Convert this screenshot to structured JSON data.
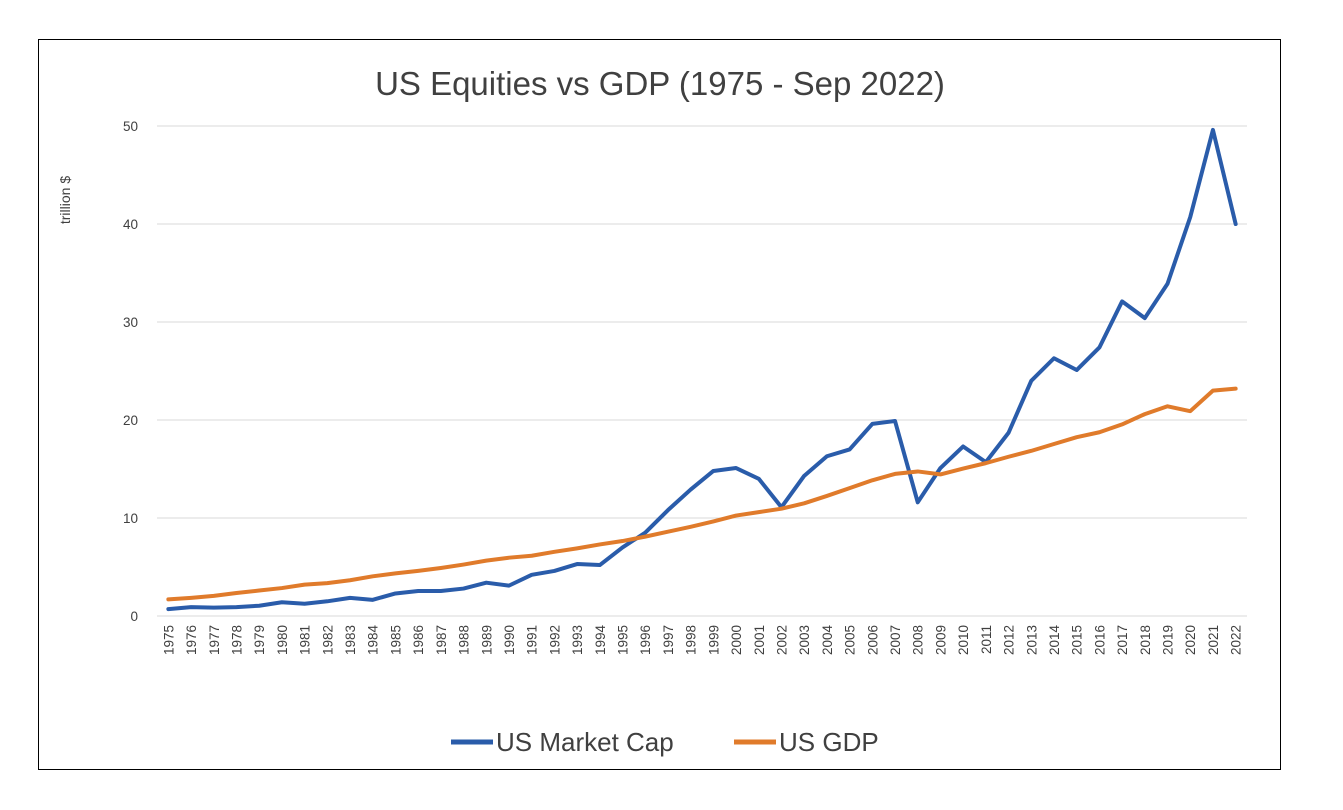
{
  "chart_data": {
    "type": "line",
    "title": "US Equities vs GDP (1975 - Sep 2022)",
    "xlabel": "",
    "ylabel": "trillion $",
    "ylim": [
      0,
      50
    ],
    "yticks": [
      0,
      10,
      20,
      30,
      40,
      50
    ],
    "grid": true,
    "legend": "bottom",
    "categories": [
      "1975",
      "1976",
      "1977",
      "1978",
      "1979",
      "1980",
      "1981",
      "1982",
      "1983",
      "1984",
      "1985",
      "1986",
      "1987",
      "1988",
      "1989",
      "1990",
      "1991",
      "1992",
      "1993",
      "1994",
      "1995",
      "1996",
      "1997",
      "1998",
      "1999",
      "2000",
      "2001",
      "2002",
      "2003",
      "2004",
      "2005",
      "2006",
      "2007",
      "2008",
      "2009",
      "2010",
      "2011",
      "2012",
      "2013",
      "2014",
      "2015",
      "2016",
      "2017",
      "2018",
      "2019",
      "2020",
      "2021",
      "2022"
    ],
    "series": [
      {
        "name": "US Market Cap",
        "color": "#2a5caa",
        "values": [
          0.7,
          0.9,
          0.85,
          0.9,
          1.05,
          1.4,
          1.25,
          1.5,
          1.85,
          1.65,
          2.3,
          2.55,
          2.55,
          2.8,
          3.4,
          3.1,
          4.2,
          4.6,
          5.3,
          5.2,
          7.0,
          8.5,
          10.8,
          12.9,
          14.8,
          15.1,
          14.0,
          11.1,
          14.3,
          16.3,
          17.0,
          19.6,
          19.9,
          11.6,
          15.1,
          17.3,
          15.7,
          18.7,
          24.0,
          26.3,
          25.1,
          27.4,
          32.1,
          30.4,
          33.9,
          40.7,
          49.6,
          40.0
        ]
      },
      {
        "name": "US GDP",
        "color": "#e07b2b",
        "values": [
          1.7,
          1.85,
          2.05,
          2.35,
          2.6,
          2.85,
          3.2,
          3.35,
          3.65,
          4.05,
          4.35,
          4.6,
          4.9,
          5.25,
          5.65,
          5.95,
          6.15,
          6.55,
          6.9,
          7.3,
          7.65,
          8.1,
          8.6,
          9.1,
          9.65,
          10.25,
          10.6,
          10.95,
          11.5,
          12.25,
          13.05,
          13.85,
          14.5,
          14.75,
          14.45,
          15.05,
          15.6,
          16.25,
          16.85,
          17.55,
          18.25,
          18.75,
          19.55,
          20.6,
          21.4,
          20.9,
          23.0,
          23.2
        ]
      }
    ]
  }
}
